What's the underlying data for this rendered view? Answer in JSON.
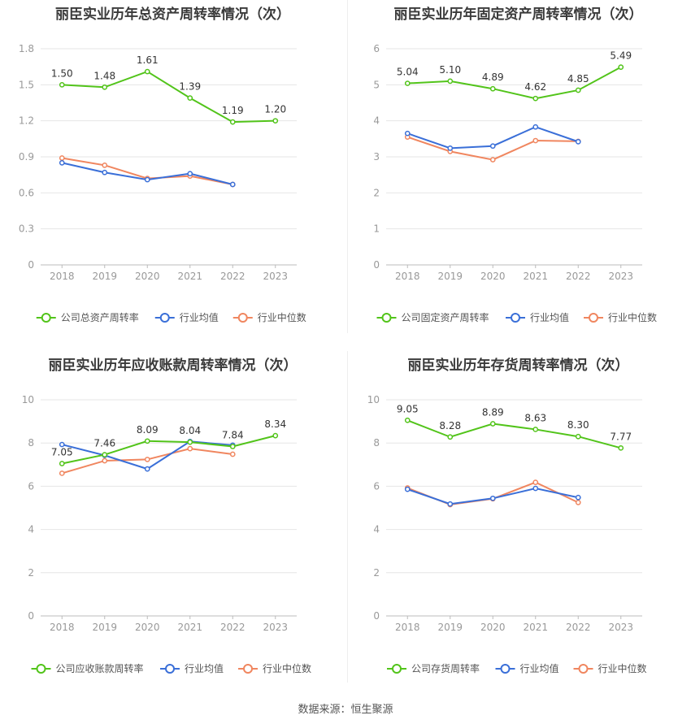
{
  "colors": {
    "company": "#52c41a",
    "industry_avg": "#3a6fd8",
    "industry_median": "#f0865f",
    "grid": "#e6e6e6",
    "axis": "#999999"
  },
  "source": "数据来源：恒生聚源",
  "chart_data": [
    {
      "type": "line",
      "title": "丽臣实业历年总资产周转率情况（次）",
      "categories": [
        "2018",
        "2019",
        "2020",
        "2021",
        "2022",
        "2023"
      ],
      "ylim": [
        0,
        1.8
      ],
      "yticks": [
        "0",
        "0.3",
        "0.6",
        "0.9",
        "1.2",
        "1.5",
        "1.8"
      ],
      "series": [
        {
          "name": "公司总资产周转率",
          "values": [
            1.5,
            1.48,
            1.61,
            1.39,
            1.19,
            1.2
          ],
          "labels": [
            "1.50",
            "1.48",
            "1.61",
            "1.39",
            "1.19",
            "1.20"
          ]
        },
        {
          "name": "行业均值",
          "values": [
            0.85,
            0.77,
            0.71,
            0.76,
            0.67,
            null
          ]
        },
        {
          "name": "行业中位数",
          "values": [
            0.89,
            0.83,
            0.72,
            0.74,
            0.67,
            null
          ]
        }
      ]
    },
    {
      "type": "line",
      "title": "丽臣实业历年固定资产周转率情况（次）",
      "categories": [
        "2018",
        "2019",
        "2020",
        "2021",
        "2022",
        "2023"
      ],
      "ylim": [
        0,
        6
      ],
      "yticks": [
        "0",
        "1",
        "2",
        "3",
        "4",
        "5",
        "6"
      ],
      "series": [
        {
          "name": "公司固定资产周转率",
          "values": [
            5.04,
            5.1,
            4.89,
            4.62,
            4.85,
            5.49
          ],
          "labels": [
            "5.04",
            "5.10",
            "4.89",
            "4.62",
            "4.85",
            "5.49"
          ]
        },
        {
          "name": "行业均值",
          "values": [
            3.65,
            3.24,
            3.3,
            3.83,
            3.42,
            null
          ]
        },
        {
          "name": "行业中位数",
          "values": [
            3.55,
            3.15,
            2.92,
            3.45,
            3.43,
            null
          ]
        }
      ]
    },
    {
      "type": "line",
      "title": "丽臣实业历年应收账款周转率情况（次）",
      "categories": [
        "2018",
        "2019",
        "2020",
        "2021",
        "2022",
        "2023"
      ],
      "ylim": [
        0,
        10
      ],
      "yticks": [
        "0",
        "2",
        "4",
        "6",
        "8",
        "10"
      ],
      "series": [
        {
          "name": "公司应收账款周转率",
          "values": [
            7.05,
            7.46,
            8.09,
            8.04,
            7.84,
            8.34
          ],
          "labels": [
            "7.05",
            "7.46",
            "8.09",
            "8.04",
            "7.84",
            "8.34"
          ]
        },
        {
          "name": "行业均值",
          "values": [
            7.93,
            7.43,
            6.8,
            8.07,
            7.9,
            null
          ]
        },
        {
          "name": "行业中位数",
          "values": [
            6.6,
            7.18,
            7.24,
            7.74,
            7.48,
            null
          ]
        }
      ]
    },
    {
      "type": "line",
      "title": "丽臣实业历年存货周转率情况（次）",
      "categories": [
        "2018",
        "2019",
        "2020",
        "2021",
        "2022",
        "2023"
      ],
      "ylim": [
        0,
        10
      ],
      "yticks": [
        "0",
        "2",
        "4",
        "6",
        "8",
        "10"
      ],
      "series": [
        {
          "name": "公司存货周转率",
          "values": [
            9.05,
            8.28,
            8.89,
            8.63,
            8.3,
            7.77
          ],
          "labels": [
            "9.05",
            "8.28",
            "8.89",
            "8.63",
            "8.30",
            "7.77"
          ]
        },
        {
          "name": "行业均值",
          "values": [
            5.86,
            5.18,
            5.44,
            5.9,
            5.48,
            null
          ]
        },
        {
          "name": "行业中位数",
          "values": [
            5.92,
            5.15,
            5.42,
            6.18,
            5.25,
            null
          ]
        }
      ]
    }
  ]
}
